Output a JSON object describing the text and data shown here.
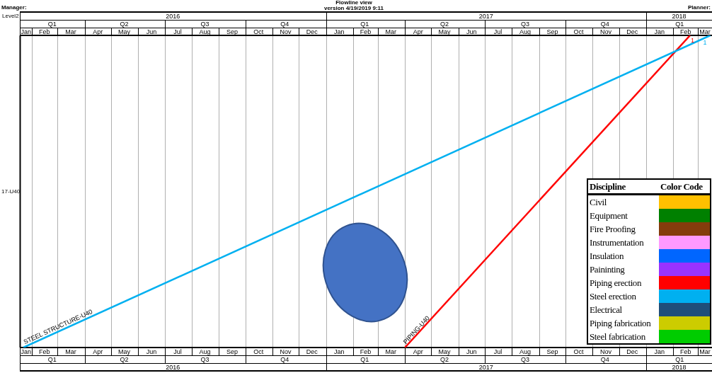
{
  "chart_data": [
    {
      "type": "line",
      "title": "Flowline view",
      "subtitle": "version 4/19/2019 9:11",
      "ylabel": "17-U40",
      "annotations": [
        "Manager:",
        "Planner:",
        "Level2",
        "2016",
        "2017",
        "2018"
      ],
      "tick_labels": "x",
      "grid": "x",
      "ylim": [
        0,
        1
      ],
      "xlim": [
        "2016-01-18",
        "2018-03-17"
      ],
      "xticks": [
        {
          "value": "2016-01-25",
          "label": "Jan"
        },
        {
          "value": "2016-02-15",
          "label": "Feb"
        },
        {
          "value": "2016-03-16",
          "label": "Mar"
        },
        {
          "value": "2016-04-16",
          "label": "Apr"
        },
        {
          "value": "2016-05-16",
          "label": "May"
        },
        {
          "value": "2016-06-16",
          "label": "Jun"
        },
        {
          "value": "2016-07-16",
          "label": "Jul"
        },
        {
          "value": "2016-08-16",
          "label": "Aug"
        },
        {
          "value": "2016-09-16",
          "label": "Sep"
        },
        {
          "value": "2016-10-16",
          "label": "Oct"
        },
        {
          "value": "2016-11-16",
          "label": "Nov"
        },
        {
          "value": "2016-12-16",
          "label": "Dec"
        },
        {
          "value": "2017-01-16",
          "label": "Jan"
        },
        {
          "value": "2017-02-15",
          "label": "Feb"
        },
        {
          "value": "2017-03-16",
          "label": "Mar"
        },
        {
          "value": "2017-04-16",
          "label": "Apr"
        },
        {
          "value": "2017-05-16",
          "label": "May"
        },
        {
          "value": "2017-06-16",
          "label": "Jun"
        },
        {
          "value": "2017-07-16",
          "label": "Jul"
        },
        {
          "value": "2017-08-16",
          "label": "Aug"
        },
        {
          "value": "2017-09-16",
          "label": "Sep"
        },
        {
          "value": "2017-10-16",
          "label": "Oct"
        },
        {
          "value": "2017-11-16",
          "label": "Nov"
        },
        {
          "value": "2017-12-16",
          "label": "Dec"
        },
        {
          "value": "2018-01-16",
          "label": "Jan"
        },
        {
          "value": "2018-02-15",
          "label": "Feb"
        },
        {
          "value": "2018-03-09",
          "label": "Mar"
        }
      ],
      "x2lim": [
        "2016-01-18",
        "2018-03-17"
      ],
      "x2ticks": [
        {
          "value": "2016-02-24",
          "label": "Q1"
        },
        {
          "value": "2016-05-16",
          "label": "Q2"
        },
        {
          "value": "2016-08-16",
          "label": "Q3"
        },
        {
          "value": "2016-11-15",
          "label": "Q4"
        },
        {
          "value": "2017-02-14",
          "label": "Q1"
        },
        {
          "value": "2017-05-16",
          "label": "Q2"
        },
        {
          "value": "2017-08-16",
          "label": "Q3"
        },
        {
          "value": "2017-11-15",
          "label": "Q4"
        },
        {
          "value": "2018-02-08",
          "label": "Q1"
        }
      ],
      "series": [
        {
          "name": "STEEL STRUCTURE-U40",
          "color": "#00b0f0",
          "x": [
            "2016-01-22",
            "2018-03-15"
          ],
          "values": [
            0,
            1
          ],
          "value_labels": [
            null,
            "1"
          ]
        },
        {
          "name": "PIPING-U40",
          "color": "#ff0000",
          "x": [
            "2017-04-01",
            "2018-02-20"
          ],
          "values": [
            0,
            1
          ],
          "value_labels": [
            null,
            "1"
          ]
        }
      ]
    },
    {
      "type": "other",
      "annotations": [
        "Discipline",
        "Color Code"
      ],
      "categories": [
        "Civil",
        "Equipment",
        "Fire Proofing",
        "Instrumentation",
        "Insulation",
        "Paininting",
        "Piping erection",
        "Steel erection",
        "Electrical",
        "Piping fabrication",
        "Steel fabrication"
      ],
      "colors": [
        "#ffc000",
        "#008000",
        "#843c0c",
        "#ff99ff",
        "#0066ff",
        "#9933ff",
        "#ff0000",
        "#00b0f0",
        "#1f4e79",
        "#cccc00",
        "#00cc00"
      ]
    }
  ]
}
